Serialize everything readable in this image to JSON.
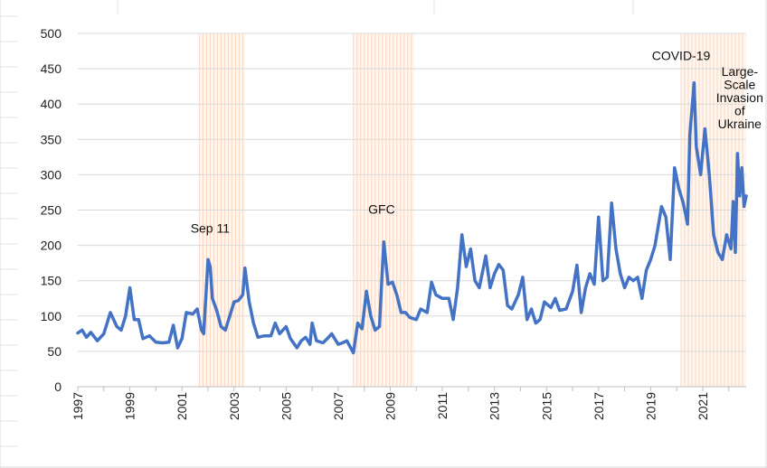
{
  "chart_data": {
    "type": "line",
    "title": "",
    "xlabel": "",
    "ylabel": "",
    "ylim": [
      0,
      500
    ],
    "xlim": [
      "1997-01",
      "2022-09"
    ],
    "grid": true,
    "legend": "none",
    "line_color": "#4472C4",
    "yticks": [
      0,
      50,
      100,
      150,
      200,
      250,
      300,
      350,
      400,
      450,
      500
    ],
    "xticks": [
      "1997",
      "1999",
      "2001",
      "2003",
      "2005",
      "2007",
      "2009",
      "2011",
      "2013",
      "2015",
      "2017",
      "2019",
      "2021"
    ],
    "shaded_periods": [
      {
        "start": "2001-09",
        "end": "2003-06",
        "color": "#FBE5D6"
      },
      {
        "start": "2007-08",
        "end": "2009-12",
        "color": "#FBE5D6"
      },
      {
        "start": "2020-03",
        "end": "2022-09",
        "color": "#FBE5D6"
      }
    ],
    "annotations": [
      {
        "text": "Sep 11",
        "x": "2002-02",
        "y": 218
      },
      {
        "text": "GFC",
        "x": "2008-09",
        "y": 245
      },
      {
        "text": "COVID-19",
        "x": "2020-03",
        "y": 462
      },
      {
        "text": "Large-\nScale\nInvasion\nof\nUkraine",
        "x": "2022-06",
        "y": 440
      }
    ],
    "series": [
      {
        "values": [
          [
            "1997-01",
            76
          ],
          [
            "1997-03",
            80
          ],
          [
            "1997-05",
            70
          ],
          [
            "1997-07",
            77
          ],
          [
            "1997-10",
            65
          ],
          [
            "1998-01",
            75
          ],
          [
            "1998-04",
            105
          ],
          [
            "1998-07",
            85
          ],
          [
            "1998-09",
            80
          ],
          [
            "1998-11",
            100
          ],
          [
            "1999-01",
            140
          ],
          [
            "1999-03",
            95
          ],
          [
            "1999-05",
            95
          ],
          [
            "1999-07",
            68
          ],
          [
            "1999-10",
            72
          ],
          [
            "2000-01",
            63
          ],
          [
            "2000-04",
            62
          ],
          [
            "2000-07",
            63
          ],
          [
            "2000-09",
            87
          ],
          [
            "2000-11",
            55
          ],
          [
            "2001-01",
            68
          ],
          [
            "2001-03",
            105
          ],
          [
            "2001-06",
            103
          ],
          [
            "2001-08",
            110
          ],
          [
            "2001-10",
            80
          ],
          [
            "2001-11",
            75
          ],
          [
            "2002-01",
            180
          ],
          [
            "2002-02",
            170
          ],
          [
            "2002-03",
            125
          ],
          [
            "2002-05",
            108
          ],
          [
            "2002-07",
            85
          ],
          [
            "2002-09",
            80
          ],
          [
            "2002-11",
            100
          ],
          [
            "2003-01",
            120
          ],
          [
            "2003-03",
            122
          ],
          [
            "2003-05",
            130
          ],
          [
            "2003-06",
            168
          ],
          [
            "2003-08",
            120
          ],
          [
            "2003-10",
            90
          ],
          [
            "2003-12",
            70
          ],
          [
            "2004-03",
            72
          ],
          [
            "2004-06",
            72
          ],
          [
            "2004-08",
            90
          ],
          [
            "2004-10",
            75
          ],
          [
            "2005-01",
            85
          ],
          [
            "2005-03",
            68
          ],
          [
            "2005-06",
            55
          ],
          [
            "2005-08",
            65
          ],
          [
            "2005-10",
            70
          ],
          [
            "2005-12",
            60
          ],
          [
            "2006-01",
            90
          ],
          [
            "2006-03",
            65
          ],
          [
            "2006-06",
            62
          ],
          [
            "2006-08",
            68
          ],
          [
            "2006-10",
            75
          ],
          [
            "2007-01",
            60
          ],
          [
            "2007-03",
            62
          ],
          [
            "2007-05",
            65
          ],
          [
            "2007-08",
            48
          ],
          [
            "2007-10",
            90
          ],
          [
            "2007-12",
            82
          ],
          [
            "2008-02",
            135
          ],
          [
            "2008-04",
            100
          ],
          [
            "2008-06",
            80
          ],
          [
            "2008-08",
            85
          ],
          [
            "2008-10",
            205
          ],
          [
            "2008-12",
            145
          ],
          [
            "2009-02",
            148
          ],
          [
            "2009-04",
            130
          ],
          [
            "2009-06",
            105
          ],
          [
            "2009-08",
            105
          ],
          [
            "2009-10",
            98
          ],
          [
            "2010-01",
            95
          ],
          [
            "2010-03",
            110
          ],
          [
            "2010-06",
            105
          ],
          [
            "2010-08",
            148
          ],
          [
            "2010-10",
            130
          ],
          [
            "2011-01",
            125
          ],
          [
            "2011-04",
            125
          ],
          [
            "2011-06",
            95
          ],
          [
            "2011-08",
            140
          ],
          [
            "2011-10",
            215
          ],
          [
            "2011-12",
            170
          ],
          [
            "2012-02",
            195
          ],
          [
            "2012-04",
            150
          ],
          [
            "2012-06",
            140
          ],
          [
            "2012-09",
            185
          ],
          [
            "2012-11",
            140
          ],
          [
            "2013-01",
            160
          ],
          [
            "2013-03",
            173
          ],
          [
            "2013-05",
            165
          ],
          [
            "2013-07",
            115
          ],
          [
            "2013-09",
            110
          ],
          [
            "2013-12",
            130
          ],
          [
            "2014-02",
            155
          ],
          [
            "2014-04",
            95
          ],
          [
            "2014-06",
            110
          ],
          [
            "2014-08",
            90
          ],
          [
            "2014-10",
            95
          ],
          [
            "2014-12",
            120
          ],
          [
            "2015-03",
            112
          ],
          [
            "2015-05",
            125
          ],
          [
            "2015-07",
            108
          ],
          [
            "2015-10",
            110
          ],
          [
            "2016-01",
            135
          ],
          [
            "2016-03",
            172
          ],
          [
            "2016-05",
            105
          ],
          [
            "2016-07",
            140
          ],
          [
            "2016-09",
            160
          ],
          [
            "2016-11",
            145
          ],
          [
            "2017-01",
            240
          ],
          [
            "2017-03",
            150
          ],
          [
            "2017-05",
            155
          ],
          [
            "2017-07",
            260
          ],
          [
            "2017-09",
            195
          ],
          [
            "2017-11",
            160
          ],
          [
            "2018-01",
            140
          ],
          [
            "2018-03",
            155
          ],
          [
            "2018-05",
            150
          ],
          [
            "2018-07",
            155
          ],
          [
            "2018-09",
            125
          ],
          [
            "2018-11",
            165
          ],
          [
            "2019-01",
            180
          ],
          [
            "2019-03",
            200
          ],
          [
            "2019-06",
            255
          ],
          [
            "2019-08",
            240
          ],
          [
            "2019-10",
            180
          ],
          [
            "2019-12",
            310
          ],
          [
            "2020-02",
            280
          ],
          [
            "2020-04",
            260
          ],
          [
            "2020-06",
            230
          ],
          [
            "2020-07",
            355
          ],
          [
            "2020-09",
            430
          ],
          [
            "2020-10",
            340
          ],
          [
            "2020-12",
            300
          ],
          [
            "2021-02",
            365
          ],
          [
            "2021-04",
            300
          ],
          [
            "2021-06",
            215
          ],
          [
            "2021-08",
            190
          ],
          [
            "2021-10",
            180
          ],
          [
            "2021-12",
            215
          ],
          [
            "2022-02",
            195
          ],
          [
            "2022-03",
            262
          ],
          [
            "2022-04",
            190
          ],
          [
            "2022-05",
            330
          ],
          [
            "2022-06",
            270
          ],
          [
            "2022-07",
            310
          ],
          [
            "2022-08",
            255
          ],
          [
            "2022-09",
            270
          ]
        ]
      }
    ]
  }
}
